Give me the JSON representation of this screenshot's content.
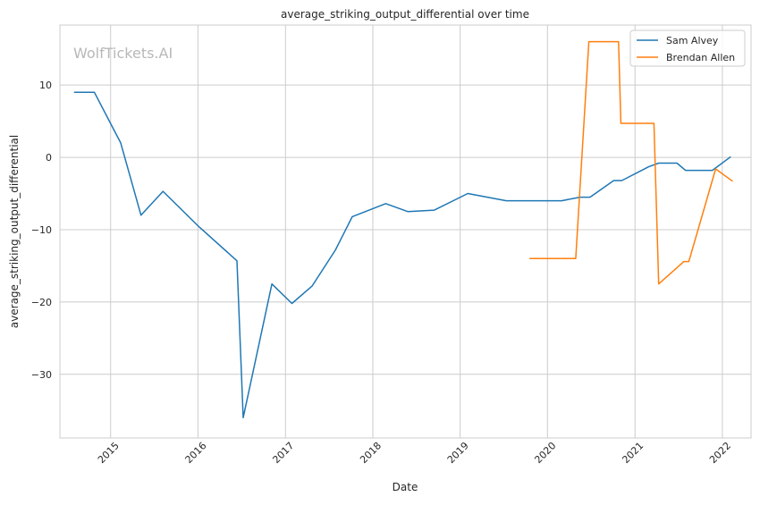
{
  "chart_data": {
    "type": "line",
    "title": "average_striking_output_differential over time",
    "xlabel": "Date",
    "ylabel": "average_striking_output_differential",
    "watermark": "WolfTickets.AI",
    "grid": true,
    "legend_position": "top-right",
    "xlim": [
      "2014-06-03",
      "2022-05-01"
    ],
    "ylim": [
      -38.8,
      18.3
    ],
    "x_ticks": [
      "2015-01-01",
      "2016-01-01",
      "2017-01-01",
      "2018-01-01",
      "2019-01-01",
      "2020-01-01",
      "2021-01-01",
      "2022-01-01"
    ],
    "x_tick_labels": [
      "2015",
      "2016",
      "2017",
      "2018",
      "2019",
      "2020",
      "2021",
      "2022"
    ],
    "y_ticks": [
      10,
      0,
      -10,
      -20,
      -30
    ],
    "y_tick_labels": [
      "10",
      "0",
      "−10",
      "−20",
      "−30"
    ],
    "series": [
      {
        "name": "Sam Alvey",
        "color": "#1f77b4",
        "x": [
          "2014-08-01",
          "2014-10-25",
          "2015-02-12",
          "2015-05-08",
          "2015-08-08",
          "2016-01-02",
          "2016-06-12",
          "2016-07-08",
          "2016-11-05",
          "2017-01-28",
          "2017-04-22",
          "2017-07-29",
          "2017-10-07",
          "2018-02-24",
          "2018-05-27",
          "2018-09-15",
          "2019-02-02",
          "2019-07-13",
          "2019-11-23",
          "2020-02-29",
          "2020-05-16",
          "2020-06-27",
          "2020-10-04",
          "2020-11-07",
          "2021-02-27",
          "2021-04-10",
          "2021-06-25",
          "2021-07-31",
          "2021-10-02",
          "2021-11-20",
          "2022-02-05"
        ],
        "y": [
          9,
          9,
          2,
          -8,
          -4.7,
          -9.5,
          -14.3,
          -36,
          -17.5,
          -20.2,
          -17.8,
          -12.8,
          -8.2,
          -6.4,
          -7.5,
          -7.3,
          -5,
          -6,
          -6,
          -6,
          -5.5,
          -5.5,
          -3.2,
          -3.2,
          -1.3,
          -0.8,
          -0.8,
          -1.8,
          -1.8,
          -1.8,
          0.1
        ]
      },
      {
        "name": "Brendan Allen",
        "color": "#ff7f0e",
        "x": [
          "2019-10-18",
          "2020-04-28",
          "2020-06-22",
          "2020-10-24",
          "2020-11-03",
          "2021-03-21",
          "2021-04-10",
          "2021-07-24",
          "2021-08-14",
          "2021-12-04",
          "2022-02-13"
        ],
        "y": [
          -14,
          -14,
          16,
          16,
          4.7,
          4.7,
          -17.5,
          -14.4,
          -14.4,
          -1.6,
          -3.3
        ]
      }
    ]
  }
}
